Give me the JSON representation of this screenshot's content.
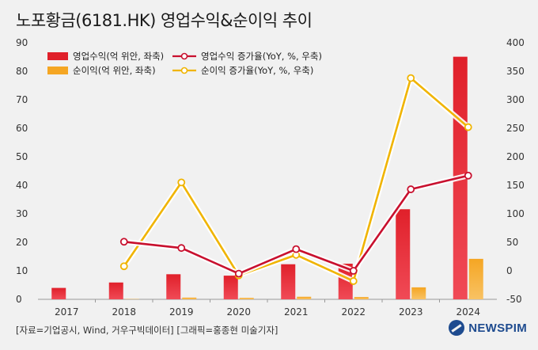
{
  "title": "노포황금(6181.HK) 영업수익&순이익 추이",
  "source": "[자료=기업공시, Wind, 거우구빅데이터] [그래픽=홍종현 미술기자]",
  "brand": "NEWSPIM",
  "colors": {
    "revenue_bar": "#e0202a",
    "profit_bar": "#f5a623",
    "revenue_growth_line": "#c8102e",
    "profit_growth_line": "#f0b400",
    "brand": "#1e4b8f"
  },
  "chart_data": {
    "type": "bar",
    "categories": [
      "2017",
      "2018",
      "2019",
      "2020",
      "2021",
      "2022",
      "2023",
      "2024"
    ],
    "left_axis": {
      "ylim": [
        0,
        90
      ],
      "ticks": [
        0,
        10,
        20,
        30,
        40,
        50,
        60,
        70,
        80,
        90
      ]
    },
    "right_axis": {
      "ylim": [
        -50,
        400
      ],
      "ticks": [
        -50,
        0,
        50,
        100,
        150,
        200,
        250,
        300,
        350,
        400
      ]
    },
    "grid": false,
    "legend_placement": "top-left",
    "series": [
      {
        "name": "영업수익(억 위안, 좌축)",
        "kind": "bar",
        "axis": "left",
        "values": [
          4.0,
          5.9,
          8.8,
          8.3,
          12.3,
          12.5,
          31.6,
          85.1
        ]
      },
      {
        "name": "순이익(억 위안, 좌축)",
        "kind": "bar",
        "axis": "left",
        "values": [
          0.0,
          0.1,
          0.6,
          0.5,
          0.9,
          0.8,
          4.2,
          14.2
        ]
      },
      {
        "name": "영업수익 증가율(YoY, %, 우축)",
        "kind": "line",
        "axis": "right",
        "values": [
          null,
          51,
          40,
          -5,
          38,
          0,
          143,
          167
        ]
      },
      {
        "name": "순이익 증가율(YoY, %, 우축)",
        "kind": "line",
        "axis": "right",
        "values": [
          null,
          8,
          155,
          -8,
          28,
          -18,
          338,
          252
        ]
      }
    ]
  }
}
